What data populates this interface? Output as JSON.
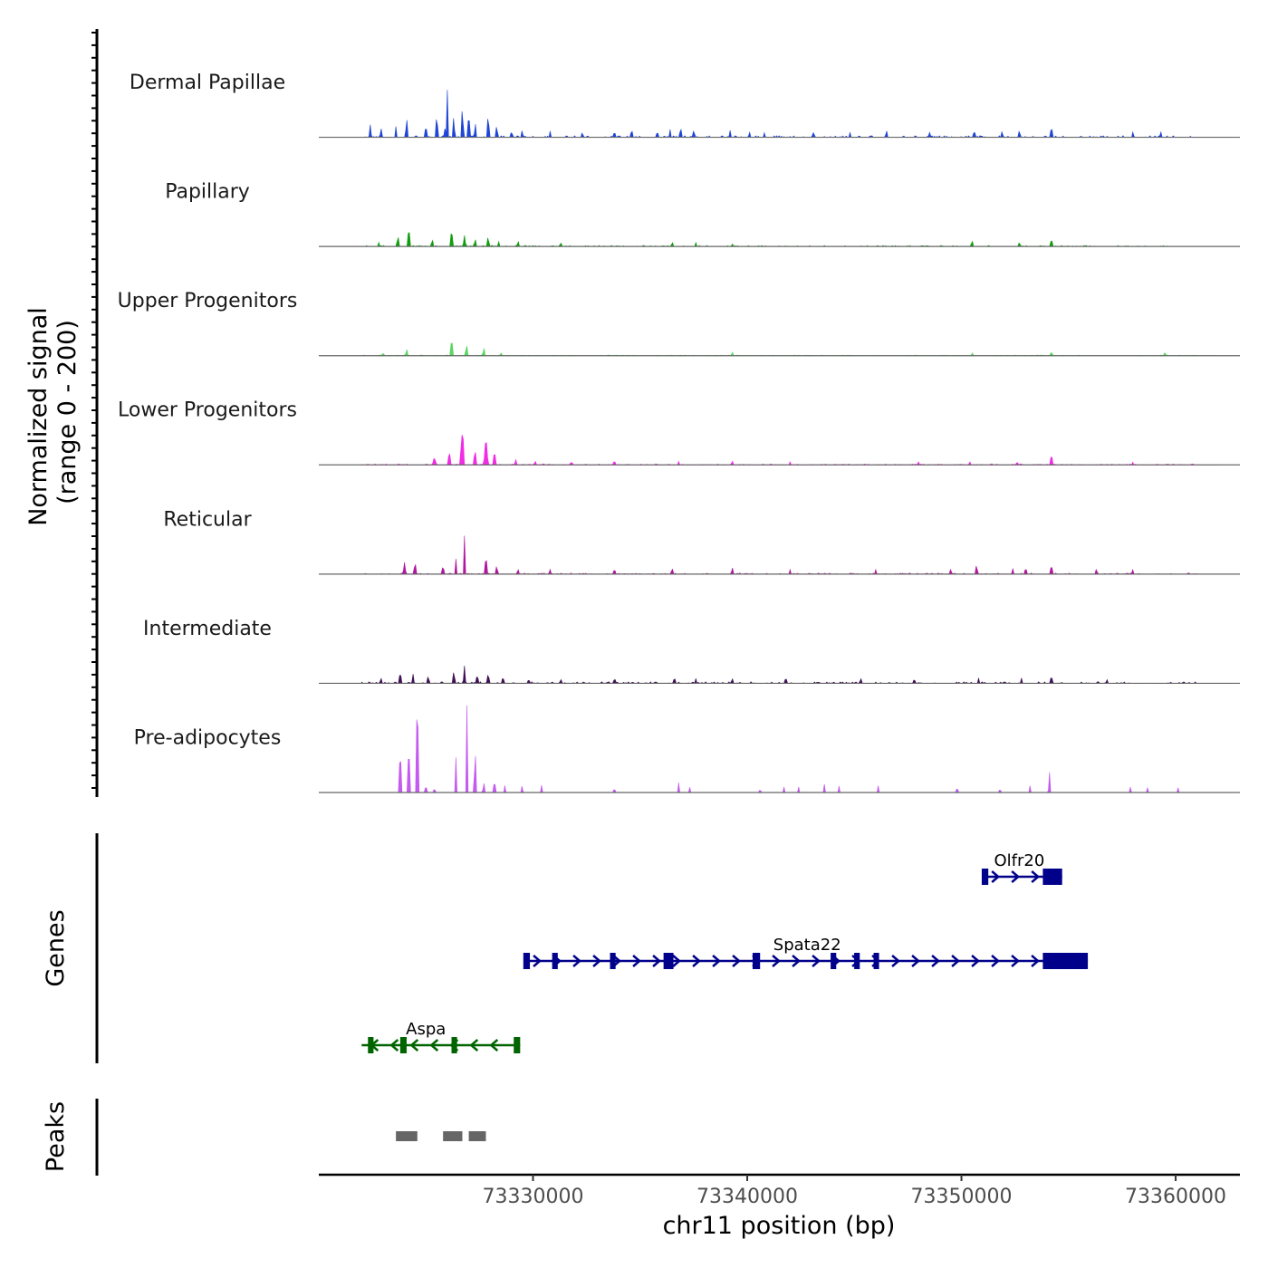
{
  "chart_data": {
    "type": "area",
    "title": "",
    "xlabel": "chr11 position (bp)",
    "xlim": [
      73320000,
      73363000
    ],
    "x_ticks": [
      {
        "value": 73330000,
        "label": "73330000"
      },
      {
        "value": 73340000,
        "label": "73340000"
      },
      {
        "value": 73350000,
        "label": "73350000"
      },
      {
        "value": 73360000,
        "label": "73360000"
      }
    ],
    "coverage": {
      "ylabel_line1": "Normalized signal",
      "ylabel_line2": "(range 0 - 200)",
      "yrange": [
        0,
        200
      ],
      "series": [
        {
          "name": "Dermal Papillae",
          "color": "#1f45d6",
          "peaks": [
            [
              73322400,
              25,
              120
            ],
            [
              73322900,
              18,
              100
            ],
            [
              73323600,
              22,
              90
            ],
            [
              73324100,
              35,
              110
            ],
            [
              73325000,
              20,
              120
            ],
            [
              73325500,
              38,
              140
            ],
            [
              73325900,
              18,
              120
            ],
            [
              73326000,
              100,
              110
            ],
            [
              73326300,
              40,
              100
            ],
            [
              73326700,
              60,
              110
            ],
            [
              73327000,
              45,
              110
            ],
            [
              73327300,
              28,
              100
            ],
            [
              73327900,
              40,
              130
            ],
            [
              73328300,
              22,
              120
            ],
            [
              73329000,
              10,
              100
            ],
            [
              73329500,
              12,
              100
            ],
            [
              73330800,
              10,
              100
            ],
            [
              73332300,
              10,
              100
            ],
            [
              73333800,
              10,
              110
            ],
            [
              73334600,
              12,
              110
            ],
            [
              73335800,
              12,
              100
            ],
            [
              73336400,
              14,
              110
            ],
            [
              73336900,
              16,
              140
            ],
            [
              73337500,
              12,
              140
            ],
            [
              73339200,
              13,
              120
            ],
            [
              73340100,
              10,
              100
            ],
            [
              73340800,
              10,
              100
            ],
            [
              73343100,
              10,
              110
            ],
            [
              73344800,
              10,
              100
            ],
            [
              73346500,
              12,
              110
            ],
            [
              73348500,
              10,
              100
            ],
            [
              73350600,
              12,
              110
            ],
            [
              73351900,
              10,
              110
            ],
            [
              73352700,
              12,
              120
            ],
            [
              73354200,
              18,
              130
            ],
            [
              73358000,
              10,
              110
            ],
            [
              73359300,
              8,
              100
            ]
          ],
          "noise": 3
        },
        {
          "name": "Papillary",
          "color": "#119e0e",
          "peaks": [
            [
              73322800,
              8,
              120
            ],
            [
              73323700,
              18,
              140
            ],
            [
              73324200,
              40,
              110
            ],
            [
              73325300,
              14,
              120
            ],
            [
              73326200,
              28,
              140
            ],
            [
              73326800,
              24,
              130
            ],
            [
              73327300,
              14,
              110
            ],
            [
              73327900,
              16,
              130
            ],
            [
              73328400,
              10,
              100
            ],
            [
              73329300,
              8,
              100
            ],
            [
              73331300,
              8,
              100
            ],
            [
              73336500,
              8,
              110
            ],
            [
              73337600,
              8,
              110
            ],
            [
              73339300,
              6,
              100
            ],
            [
              73350500,
              10,
              130
            ],
            [
              73352700,
              8,
              130
            ],
            [
              73354200,
              14,
              120
            ]
          ],
          "noise": 2
        },
        {
          "name": "Upper Progenitors",
          "color": "#58d65f",
          "peaks": [
            [
              73323000,
              6,
              100
            ],
            [
              73324100,
              14,
              100
            ],
            [
              73326200,
              30,
              130
            ],
            [
              73326900,
              20,
              120
            ],
            [
              73327700,
              14,
              110
            ],
            [
              73328500,
              6,
              100
            ],
            [
              73339300,
              8,
              100
            ],
            [
              73350500,
              6,
              100
            ],
            [
              73354200,
              8,
              100
            ],
            [
              73359500,
              6,
              100
            ]
          ],
          "noise": 1.2
        },
        {
          "name": "Lower Progenitors",
          "color": "#f22ce5",
          "peaks": [
            [
              73325400,
              12,
              200
            ],
            [
              73326100,
              25,
              150
            ],
            [
              73326700,
              65,
              200
            ],
            [
              73327300,
              25,
              150
            ],
            [
              73327800,
              45,
              200
            ],
            [
              73328200,
              25,
              150
            ],
            [
              73329200,
              10,
              120
            ],
            [
              73330100,
              8,
              110
            ],
            [
              73331800,
              6,
              110
            ],
            [
              73333800,
              8,
              110
            ],
            [
              73336800,
              6,
              110
            ],
            [
              73339300,
              8,
              110
            ],
            [
              73342000,
              6,
              110
            ],
            [
              73348000,
              6,
              110
            ],
            [
              73350400,
              6,
              110
            ],
            [
              73352600,
              6,
              110
            ],
            [
              73354200,
              22,
              100
            ],
            [
              73358000,
              6,
              110
            ]
          ],
          "noise": 2
        },
        {
          "name": "Reticular",
          "color": "#b0179e",
          "peaks": [
            [
              73324000,
              25,
              130
            ],
            [
              73324500,
              20,
              130
            ],
            [
              73325800,
              14,
              120
            ],
            [
              73326400,
              30,
              110
            ],
            [
              73326800,
              85,
              110
            ],
            [
              73327800,
              30,
              150
            ],
            [
              73328300,
              16,
              120
            ],
            [
              73329300,
              10,
              110
            ],
            [
              73330800,
              10,
              120
            ],
            [
              73333800,
              10,
              110
            ],
            [
              73336500,
              10,
              110
            ],
            [
              73339300,
              12,
              110
            ],
            [
              73342000,
              10,
              110
            ],
            [
              73346000,
              10,
              110
            ],
            [
              73349500,
              10,
              110
            ],
            [
              73350700,
              16,
              130
            ],
            [
              73352400,
              12,
              110
            ],
            [
              73353000,
              12,
              120
            ],
            [
              73354200,
              18,
              110
            ],
            [
              73356300,
              10,
              110
            ],
            [
              73358000,
              8,
              110
            ]
          ],
          "noise": 2
        },
        {
          "name": "Intermediate",
          "color": "#3f1056",
          "peaks": [
            [
              73322900,
              10,
              110
            ],
            [
              73323800,
              20,
              130
            ],
            [
              73324400,
              18,
              120
            ],
            [
              73325100,
              14,
              110
            ],
            [
              73326300,
              22,
              120
            ],
            [
              73326800,
              35,
              120
            ],
            [
              73327400,
              16,
              110
            ],
            [
              73327900,
              18,
              120
            ],
            [
              73328600,
              10,
              110
            ],
            [
              73329800,
              8,
              110
            ],
            [
              73331300,
              8,
              110
            ],
            [
              73333800,
              8,
              110
            ],
            [
              73336600,
              8,
              110
            ],
            [
              73337600,
              8,
              110
            ],
            [
              73339300,
              10,
              110
            ],
            [
              73341800,
              10,
              110
            ],
            [
              73345300,
              10,
              110
            ],
            [
              73347800,
              8,
              110
            ],
            [
              73350800,
              10,
              110
            ],
            [
              73352800,
              8,
              110
            ],
            [
              73354200,
              14,
              120
            ],
            [
              73356800,
              8,
              110
            ]
          ],
          "noise": 3
        },
        {
          "name": "Pre-adipocytes",
          "color": "#c45af0",
          "peaks": [
            [
              73324200,
              100,
              110
            ],
            [
              73324600,
              200,
              110
            ],
            [
              73323800,
              90,
              100
            ],
            [
              73325000,
              20,
              80
            ],
            [
              73325400,
              16,
              70
            ],
            [
              73326400,
              70,
              110
            ],
            [
              73326900,
              215,
              80
            ],
            [
              73327300,
              80,
              110
            ],
            [
              73327700,
              20,
              100
            ],
            [
              73328200,
              24,
              100
            ],
            [
              73328700,
              16,
              80
            ],
            [
              73329500,
              14,
              90
            ],
            [
              73330400,
              14,
              80
            ],
            [
              73333800,
              16,
              70
            ],
            [
              73336800,
              20,
              70
            ],
            [
              73337300,
              14,
              70
            ],
            [
              73340600,
              12,
              70
            ],
            [
              73341700,
              14,
              70
            ],
            [
              73342400,
              12,
              70
            ],
            [
              73343600,
              18,
              70
            ],
            [
              73344300,
              16,
              70
            ],
            [
              73346100,
              16,
              70
            ],
            [
              73349800,
              20,
              70
            ],
            [
              73351800,
              14,
              70
            ],
            [
              73353200,
              14,
              70
            ],
            [
              73354100,
              48,
              90
            ],
            [
              73357900,
              14,
              70
            ],
            [
              73358700,
              12,
              70
            ],
            [
              73360100,
              12,
              70
            ]
          ],
          "noise": 0
        }
      ]
    },
    "genes": {
      "ylabel": "Genes",
      "items": [
        {
          "name": "Olfr20",
          "strand": "+",
          "color": "#00008b",
          "row": 0,
          "start": 73351000,
          "end": 73354700,
          "label_pos": 73352700,
          "exons": [
            [
              73351000,
              73351080
            ],
            [
              73353800,
              73354700
            ]
          ],
          "thin_exons": [
            73351000
          ]
        },
        {
          "name": "Spata22",
          "strand": "+",
          "color": "#00008b",
          "row": 1,
          "start": 73329600,
          "end": 73355900,
          "label_pos": 73342800,
          "exons": [
            [
              73329600,
              73329700
            ],
            [
              73330900,
              73331000
            ],
            [
              73333600,
              73333700
            ],
            [
              73336100,
              73336200
            ],
            [
              73336300,
              73336400
            ],
            [
              73340250,
              73340600
            ],
            [
              73343900,
              73344000
            ],
            [
              73345000,
              73345100
            ],
            [
              73345900,
              73346150
            ],
            [
              73353800,
              73355900
            ]
          ],
          "thin_exons": [
            73329600,
            73330950,
            73333650,
            73336150,
            73336350,
            73343950,
            73345050
          ]
        },
        {
          "name": "Aspa",
          "strand": "-",
          "color": "#006400",
          "row": 2,
          "start": 73322000,
          "end": 73329400,
          "label_pos": 73325000,
          "exons": [
            [
              73322300,
              73322450
            ],
            [
              73323800,
              73324100
            ],
            [
              73326200,
              73326300
            ],
            [
              73329100,
              73329400
            ]
          ],
          "thin_exons": [
            73322350,
            73326250
          ]
        }
      ]
    },
    "peaks_track": {
      "ylabel": "Peaks",
      "color": "#666666",
      "regions": [
        [
          73323600,
          73324600
        ],
        [
          73325800,
          73326700
        ],
        [
          73327000,
          73327800
        ]
      ]
    }
  }
}
